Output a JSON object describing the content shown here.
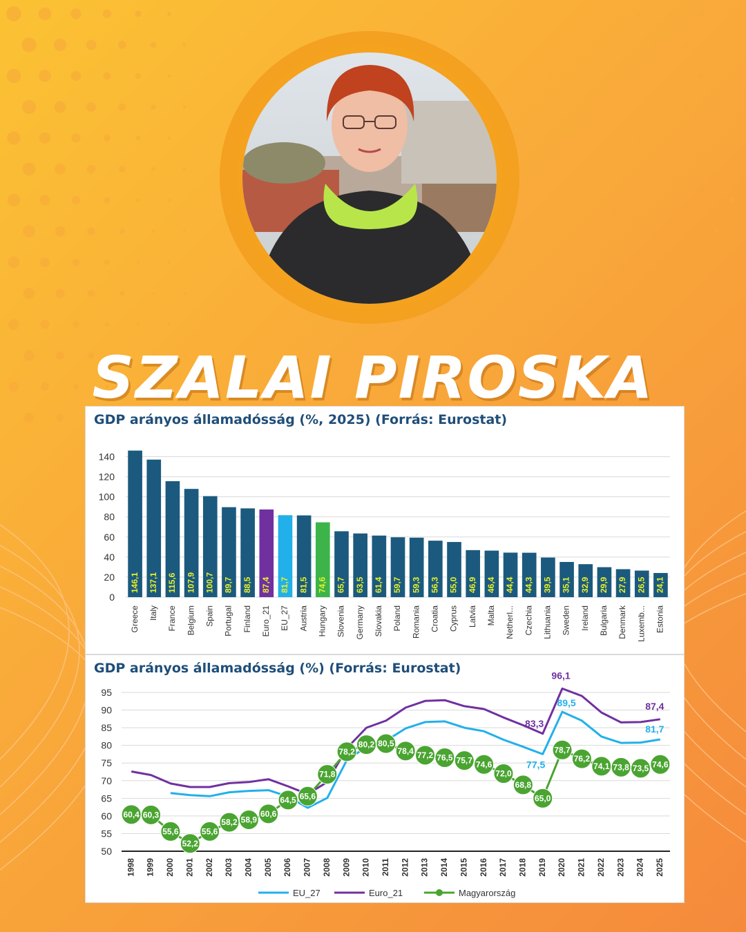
{
  "person": {
    "name": "SZALAI PIROSKA"
  },
  "colors": {
    "bar_default": "#1b5a7e",
    "bar_euro21": "#7030a0",
    "bar_eu27": "#22b0ea",
    "bar_hungary": "#3cb44a",
    "bar_label": "#e8f02a",
    "line_eu27": "#22b0ea",
    "line_euro21": "#7030a0",
    "line_hungary": "#4aa431",
    "title_text": "#1f4e79"
  },
  "chart_data": [
    {
      "type": "bar",
      "title": "GDP arányos államadósság (%, 2025) (Forrás: Eurostat)",
      "ylim": [
        0,
        150
      ],
      "yticks": [
        0,
        20,
        40,
        60,
        80,
        100,
        120,
        140
      ],
      "grid": true,
      "categories": [
        "Greece",
        "Italy",
        "France",
        "Belgium",
        "Spain",
        "Portugal",
        "Finland",
        "Euro_21",
        "EU_27",
        "Austria",
        "Hungary",
        "Slovenia",
        "Germany",
        "Slovakia",
        "Poland",
        "Romania",
        "Croatia",
        "Cyprus",
        "Latvia",
        "Malta",
        "Netherl...",
        "Czechia",
        "Lithuania",
        "Sweden",
        "Ireland",
        "Bulgaria",
        "Denmark",
        "Luxemb...",
        "Estonia"
      ],
      "values": [
        146.1,
        137.1,
        115.6,
        107.9,
        100.7,
        89.7,
        88.5,
        87.4,
        81.7,
        81.5,
        74.6,
        65.7,
        63.5,
        61.4,
        59.7,
        59.3,
        56.3,
        55.0,
        46.9,
        46.4,
        44.4,
        44.3,
        39.5,
        35.1,
        32.9,
        29.9,
        27.9,
        26.5,
        24.1
      ],
      "value_labels": [
        "146,1",
        "137,1",
        "115,6",
        "107,9",
        "100,7",
        "89,7",
        "88,5",
        "87,4",
        "81,7",
        "81,5",
        "74,6",
        "65,7",
        "63,5",
        "61,4",
        "59,7",
        "59,3",
        "56,3",
        "55,0",
        "46,9",
        "46,4",
        "44,4",
        "44,3",
        "39,5",
        "35,1",
        "32,9",
        "29,9",
        "27,9",
        "26,5",
        "24,1"
      ],
      "highlight": {
        "Euro_21": "bar_euro21",
        "EU_27": "bar_eu27",
        "Hungary": "bar_hungary"
      }
    },
    {
      "type": "line",
      "title": "GDP arányos államadósság (%) (Forrás: Eurostat)",
      "ylim": [
        50,
        95
      ],
      "yticks": [
        50,
        55,
        60,
        65,
        70,
        75,
        80,
        85,
        90,
        95
      ],
      "grid": true,
      "legend": "bottom",
      "x": [
        "1998",
        "1999",
        "2000",
        "2001",
        "2002",
        "2003",
        "2004",
        "2005",
        "2006",
        "2007",
        "2008",
        "2009",
        "2010",
        "2011",
        "2012",
        "2013",
        "2014",
        "2015",
        "2016",
        "2017",
        "2018",
        "2019",
        "2020",
        "2021",
        "2022",
        "2023",
        "2024",
        "2025"
      ],
      "series": [
        {
          "name": "EU_27",
          "color_key": "line_eu27",
          "values": [
            null,
            null,
            66.5,
            65.9,
            65.6,
            66.7,
            67.1,
            67.3,
            65.5,
            62.3,
            65.1,
            75.8,
            79.6,
            81.3,
            84.8,
            86.6,
            86.8,
            85.0,
            84.0,
            81.6,
            79.6,
            77.5,
            89.5,
            87.0,
            82.5,
            80.7,
            80.8,
            81.7
          ],
          "point_labels": {
            "2019": "77,5",
            "2020": "89,5",
            "2025": "81,7"
          }
        },
        {
          "name": "Euro_21",
          "color_key": "line_euro21",
          "values": [
            72.6,
            71.6,
            69.2,
            68.2,
            68.2,
            69.3,
            69.6,
            70.4,
            68.4,
            66.2,
            69.6,
            79.2,
            85.0,
            87.0,
            90.7,
            92.6,
            92.8,
            91.1,
            90.3,
            87.9,
            85.7,
            83.3,
            96.1,
            94.0,
            89.3,
            86.5,
            86.6,
            87.4
          ],
          "point_labels": {
            "2019": "83,3",
            "2020": "96,1",
            "2025": "87,4"
          }
        },
        {
          "name": "Magyarország",
          "color_key": "line_hungary",
          "marker": "circle",
          "values": [
            60.4,
            60.3,
            55.6,
            52.2,
            55.6,
            58.2,
            58.9,
            60.6,
            64.5,
            65.6,
            71.8,
            78.2,
            80.2,
            80.5,
            78.4,
            77.2,
            76.5,
            75.7,
            74.6,
            72.0,
            68.8,
            65.0,
            78.7,
            76.2,
            74.1,
            73.8,
            73.5,
            74.6
          ],
          "point_labels": [
            "60,4",
            "60,3",
            "55,6",
            "52,2",
            "55,6",
            "58,2",
            "58,9",
            "60,6",
            "64,5",
            "65,6",
            "71,8",
            "78,2",
            "80,2",
            "80,5",
            "78,4",
            "77,2",
            "76,5",
            "75,7",
            "74,6",
            "72,0",
            "68,8",
            "65,0",
            "78,7",
            "76,2",
            "74,1",
            "73,8",
            "73,5",
            "74,6"
          ]
        }
      ]
    }
  ]
}
